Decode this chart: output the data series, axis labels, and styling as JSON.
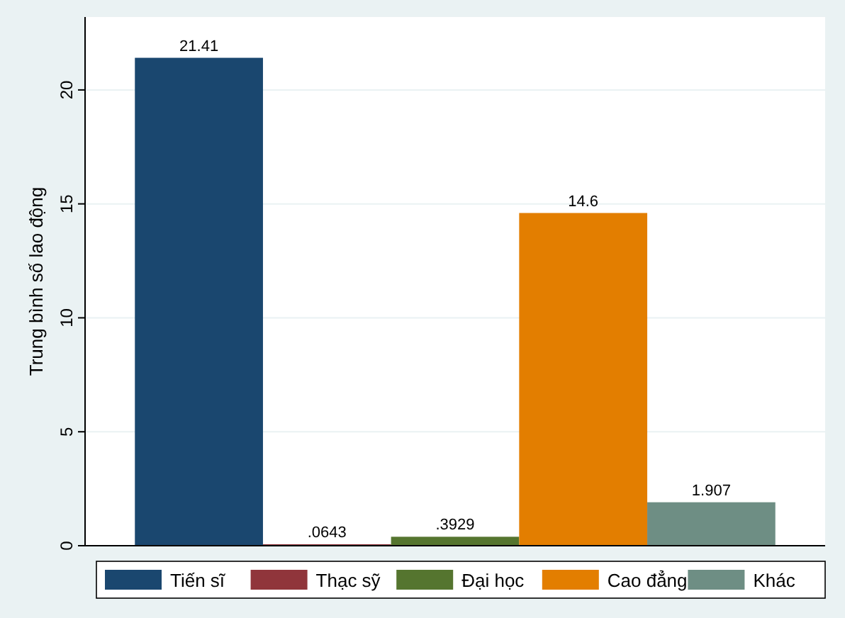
{
  "chart_data": {
    "type": "bar",
    "ylabel": "Trung bình số lao động",
    "categories": [
      null
    ],
    "ylim": [
      0,
      23.2
    ],
    "yticks": [
      0,
      5,
      10,
      15,
      20
    ],
    "grid": "y",
    "legend": "bottom",
    "series": [
      {
        "name": "Tiến sĩ",
        "color": "#1a476f",
        "values": [
          21.41
        ],
        "value_labels": [
          "21.41"
        ]
      },
      {
        "name": "Thạc sỹ",
        "color": "#90353b",
        "values": [
          0.0643
        ],
        "value_labels": [
          ".0643"
        ]
      },
      {
        "name": "Đại học",
        "color": "#55752f",
        "values": [
          0.3929
        ],
        "value_labels": [
          ".3929"
        ]
      },
      {
        "name": "Cao đẳng",
        "color": "#e37e00",
        "values": [
          14.6
        ],
        "value_labels": [
          "14.6"
        ]
      },
      {
        "name": "Khác",
        "color": "#6e8e84",
        "values": [
          1.907
        ],
        "value_labels": [
          "1.907"
        ]
      }
    ]
  }
}
